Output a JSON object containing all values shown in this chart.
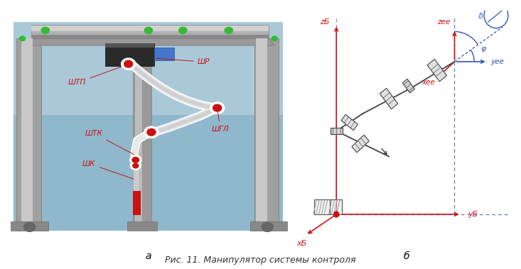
{
  "fig_width": 7.33,
  "fig_height": 3.79,
  "dpi": 100,
  "bg_color": "#ffffff",
  "caption": "Рис. 11. Манипулятор системы контроля",
  "caption_fontsize": 9,
  "label_a": "а",
  "label_b": "б",
  "left_bg_top": "#b8d0de",
  "left_bg_bot": "#8aafc4",
  "frame_gray": "#9a9a9a",
  "frame_light": "#c0c0c0",
  "frame_dark": "#6a6a6a",
  "labels": {
    "ShR": "ШР",
    "ShTP": "ШТП",
    "ShTK": "ШТК",
    "ShGL": "ШГЛ",
    "ShK": "ШК"
  },
  "red": "#cc1111",
  "blue": "#3355bb",
  "blue_dashed": "#6677cc",
  "pink": "#cc77aa",
  "gray_arm": "#444444",
  "z_b": "zБ",
  "x_b": "xБ",
  "y_b": "yБ",
  "z_ee": "zее",
  "x_ee": "xее",
  "y_ee": "yее",
  "delta": "δ",
  "phi": "φ"
}
